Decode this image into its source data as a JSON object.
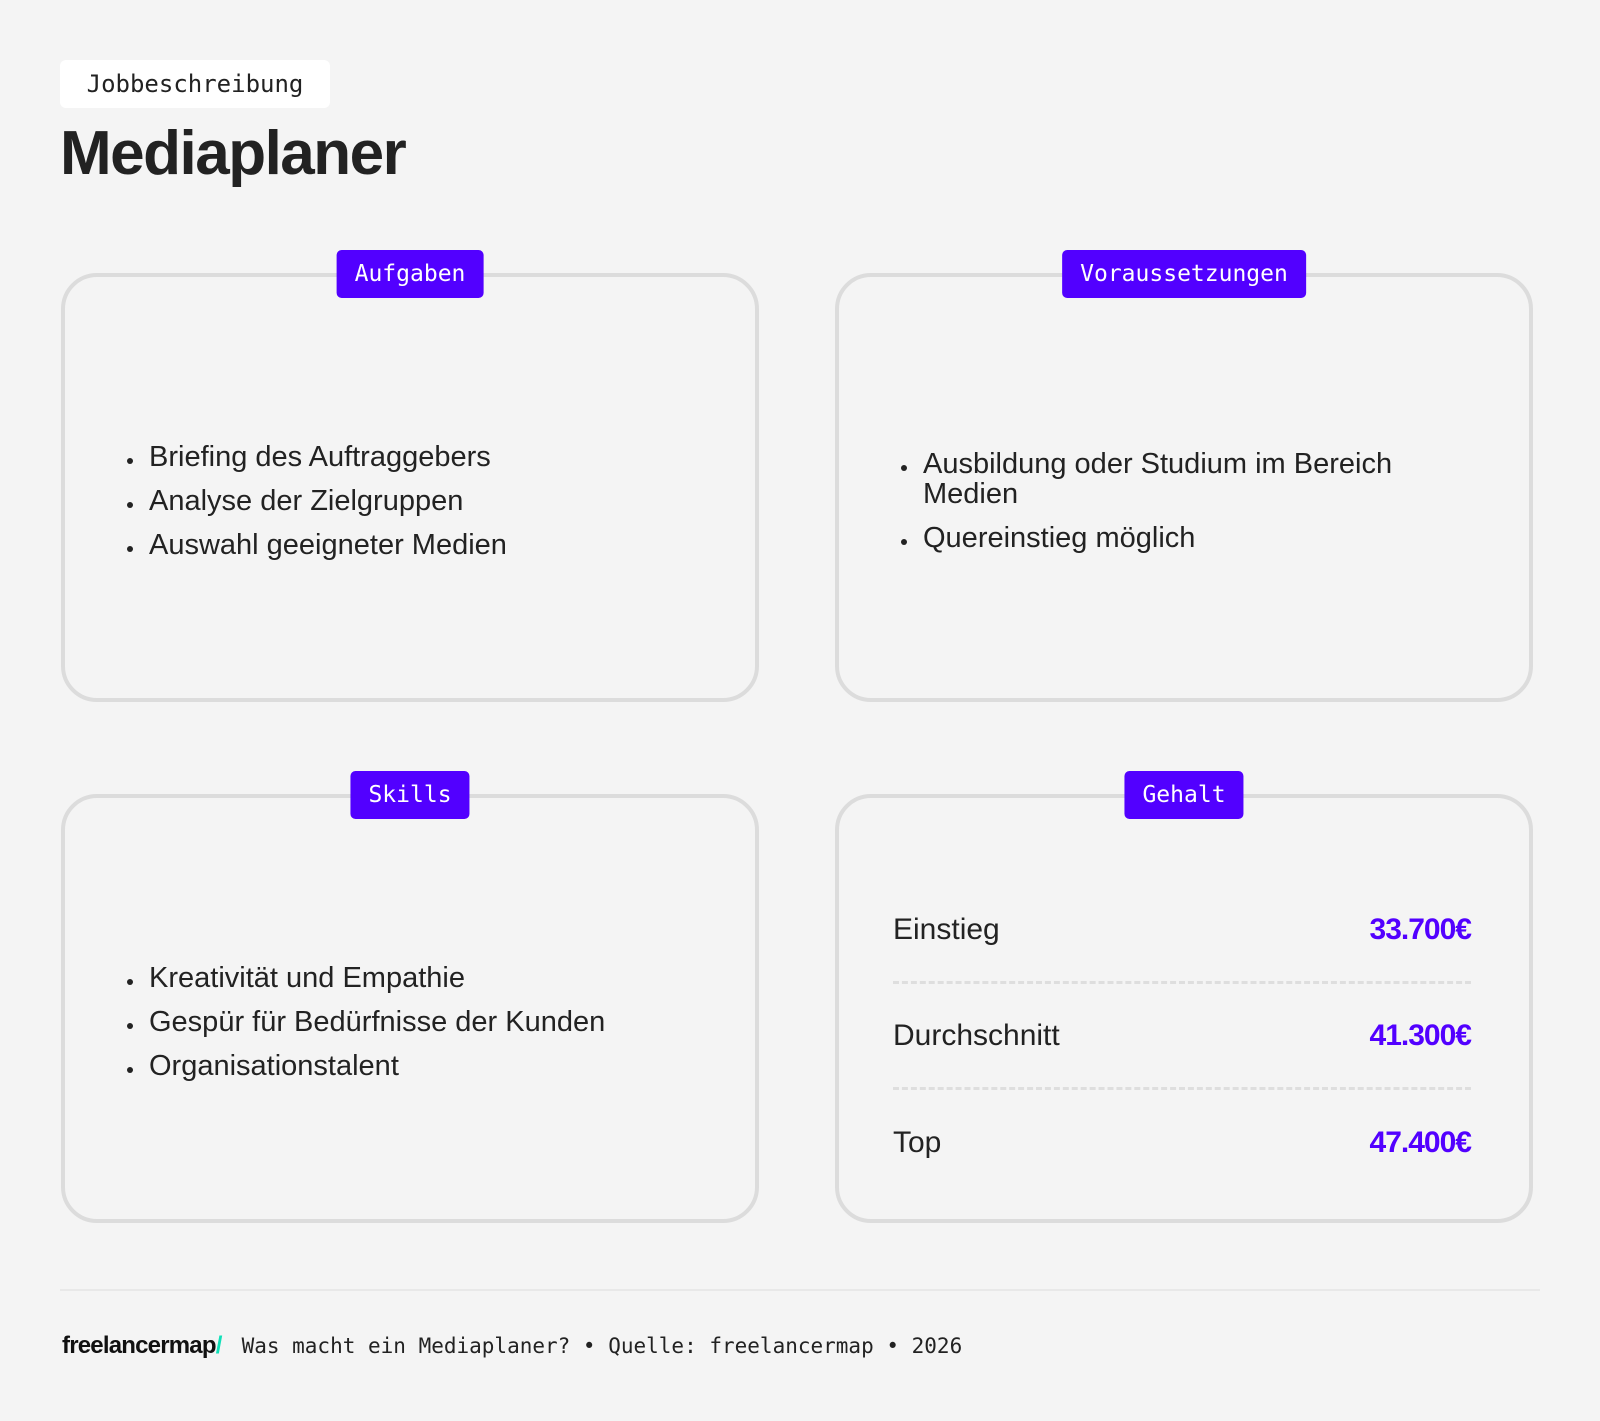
{
  "header": {
    "tag": "Jobbeschreibung",
    "title": "Mediaplaner"
  },
  "cards": {
    "aufgaben": {
      "label": "Aufgaben",
      "items": [
        "Briefing des Auftraggebers",
        "Analyse der Zielgruppen",
        "Auswahl geeigneter Medien"
      ]
    },
    "voraussetzungen": {
      "label": "Voraussetzungen",
      "items": [
        "Ausbildung oder Studium im Bereich Medien",
        "Quereinstieg möglich"
      ]
    },
    "skills": {
      "label": "Skills",
      "items": [
        "Kreativität und Empathie",
        "Gespür für Bedürfnisse der Kunden",
        "Organisationstalent"
      ]
    },
    "gehalt": {
      "label": "Gehalt",
      "rows": [
        {
          "label": "Einstieg",
          "value": "33.700€"
        },
        {
          "label": "Durchschnitt",
          "value": "41.300€"
        },
        {
          "label": "Top",
          "value": "47.400€"
        }
      ]
    }
  },
  "footer": {
    "logo": "freelancermap",
    "logo_slash": "/",
    "text": "Was macht ein Mediaplaner? • Quelle: freelancermap • 2026"
  },
  "colors": {
    "accent": "#5200ff",
    "background": "#f4f4f4",
    "border": "#dcdcdc",
    "logo_slash": "#10e0b8"
  }
}
